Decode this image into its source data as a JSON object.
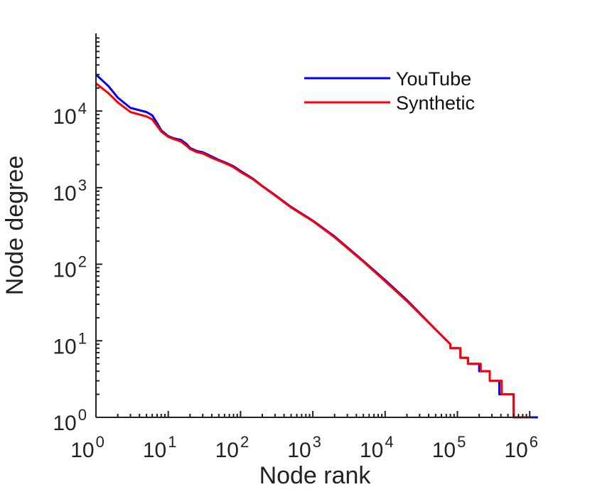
{
  "chart_data": {
    "type": "line",
    "title": "",
    "xlabel": "Node rank",
    "ylabel": "Node degree",
    "xscale": "log",
    "yscale": "log",
    "xlim": [
      1,
      1500000
    ],
    "ylim": [
      1,
      100000
    ],
    "x_ticks": [
      {
        "base": "10",
        "exp": "0",
        "value": 1
      },
      {
        "base": "10",
        "exp": "1",
        "value": 10
      },
      {
        "base": "10",
        "exp": "2",
        "value": 100
      },
      {
        "base": "10",
        "exp": "3",
        "value": 1000
      },
      {
        "base": "10",
        "exp": "4",
        "value": 10000
      },
      {
        "base": "10",
        "exp": "5",
        "value": 100000
      },
      {
        "base": "10",
        "exp": "6",
        "value": 1000000
      }
    ],
    "y_ticks": [
      {
        "base": "10",
        "exp": "0",
        "value": 1
      },
      {
        "base": "10",
        "exp": "1",
        "value": 10
      },
      {
        "base": "10",
        "exp": "2",
        "value": 100
      },
      {
        "base": "10",
        "exp": "3",
        "value": 1000
      },
      {
        "base": "10",
        "exp": "4",
        "value": 10000
      }
    ],
    "grid": false,
    "legend_position": "top-right",
    "series": [
      {
        "name": "YouTube",
        "color": "#0000ff",
        "x": [
          1,
          1.5,
          2,
          3,
          5,
          6,
          7,
          8,
          10,
          12,
          15,
          18,
          20,
          25,
          30,
          40,
          50,
          60,
          80,
          100,
          150,
          200,
          300,
          500,
          1000,
          2000,
          5000,
          10000,
          20000,
          50000,
          80000,
          80000,
          110000,
          110000,
          140000,
          140000,
          200000,
          200000,
          280000,
          280000,
          380000,
          380000,
          600000,
          600000,
          1300000
        ],
        "y": [
          30000,
          21000,
          15000,
          11000,
          9700,
          8800,
          7000,
          5600,
          4700,
          4400,
          4200,
          3700,
          3300,
          3000,
          2900,
          2550,
          2300,
          2150,
          1900,
          1650,
          1300,
          1050,
          800,
          560,
          370,
          230,
          110,
          62,
          34,
          14,
          9,
          8,
          8,
          6,
          6,
          5,
          5,
          4,
          4,
          3,
          3,
          2,
          2,
          1,
          1
        ]
      },
      {
        "name": "Synthetic",
        "color": "#ff0000",
        "x": [
          1,
          1.5,
          2,
          3,
          5,
          6,
          7,
          8,
          10,
          12,
          15,
          18,
          20,
          25,
          30,
          40,
          50,
          60,
          80,
          100,
          150,
          200,
          300,
          500,
          1000,
          2000,
          5000,
          10000,
          20000,
          50000,
          80000,
          80000,
          110000,
          110000,
          140000,
          140000,
          210000,
          210000,
          280000,
          280000,
          410000,
          410000,
          600000,
          600000,
          1000000
        ],
        "y": [
          23000,
          17000,
          13000,
          9700,
          8500,
          7800,
          6400,
          5400,
          4600,
          4300,
          4000,
          3500,
          3200,
          2900,
          2800,
          2450,
          2250,
          2100,
          1850,
          1600,
          1280,
          1040,
          790,
          550,
          365,
          225,
          108,
          60,
          33,
          14,
          9,
          8,
          8,
          6,
          6,
          5,
          5,
          4,
          4,
          3,
          3,
          2,
          2,
          1,
          1
        ]
      }
    ]
  }
}
